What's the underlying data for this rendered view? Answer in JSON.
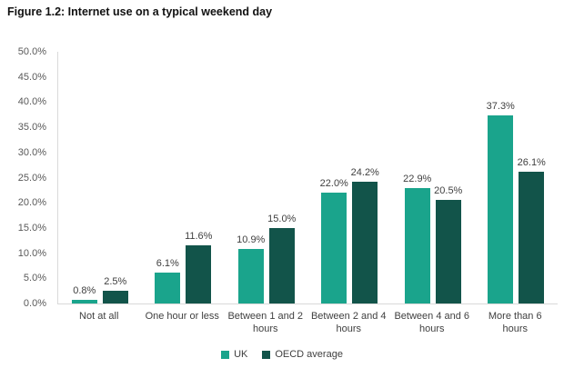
{
  "figure": {
    "title": "Figure 1.2: Internet use on a typical weekend day"
  },
  "chart_data": {
    "type": "bar",
    "title": "Figure 1.2: Internet use on a typical weekend day",
    "categories": [
      "Not at all",
      "One hour or less",
      "Between 1 and 2 hours",
      "Between 2 and 4 hours",
      "Between 4 and 6 hours",
      "More than 6 hours"
    ],
    "series": [
      {
        "name": "UK",
        "color": "#1aa48c",
        "values": [
          0.8,
          6.1,
          10.9,
          22.0,
          22.9,
          37.3
        ],
        "labels": [
          "0.8%",
          "6.1%",
          "10.9%",
          "22.0%",
          "22.9%",
          "37.3%"
        ]
      },
      {
        "name": "OECD average",
        "color": "#12544a",
        "values": [
          2.5,
          11.6,
          15.0,
          24.2,
          20.5,
          26.1
        ],
        "labels": [
          "2.5%",
          "11.6%",
          "15.0%",
          "24.2%",
          "20.5%",
          "26.1%"
        ]
      }
    ],
    "y_ticks": [
      "50.0%",
      "45.0%",
      "40.0%",
      "35.0%",
      "30.0%",
      "25.0%",
      "20.0%",
      "15.0%",
      "10.0%",
      "5.0%",
      "0.0%"
    ],
    "ylim": [
      0,
      50
    ],
    "grid": false,
    "legend_position": "bottom",
    "axis_color": "#d9d9d9",
    "tick_text_color": "#595959",
    "label_text_color": "#404040"
  }
}
